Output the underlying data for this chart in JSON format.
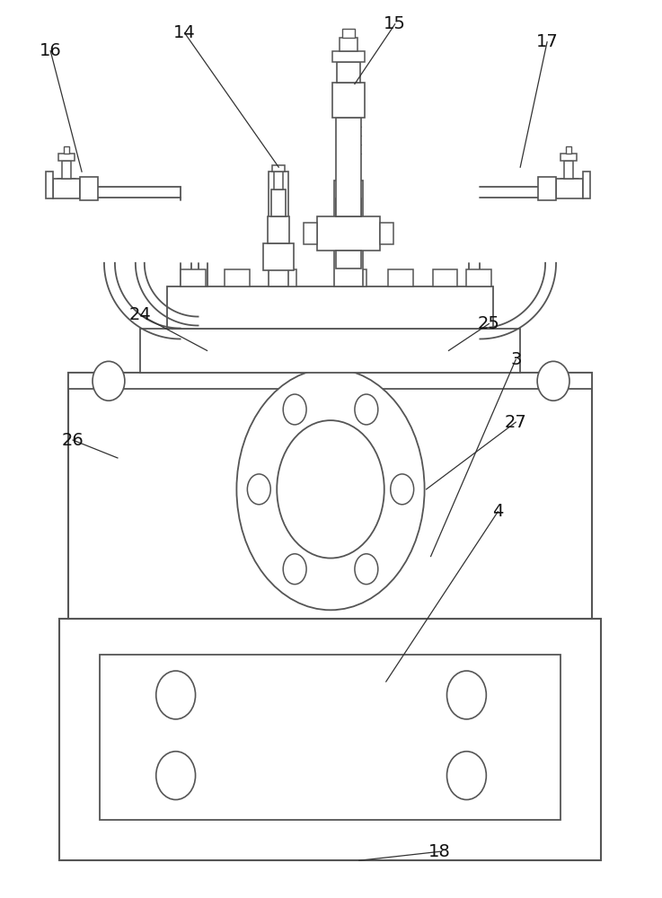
{
  "bg_color": "#ffffff",
  "lc": "#555555",
  "lw": 1.3,
  "figsize": [
    7.37,
    10.0
  ],
  "dpi": 100
}
